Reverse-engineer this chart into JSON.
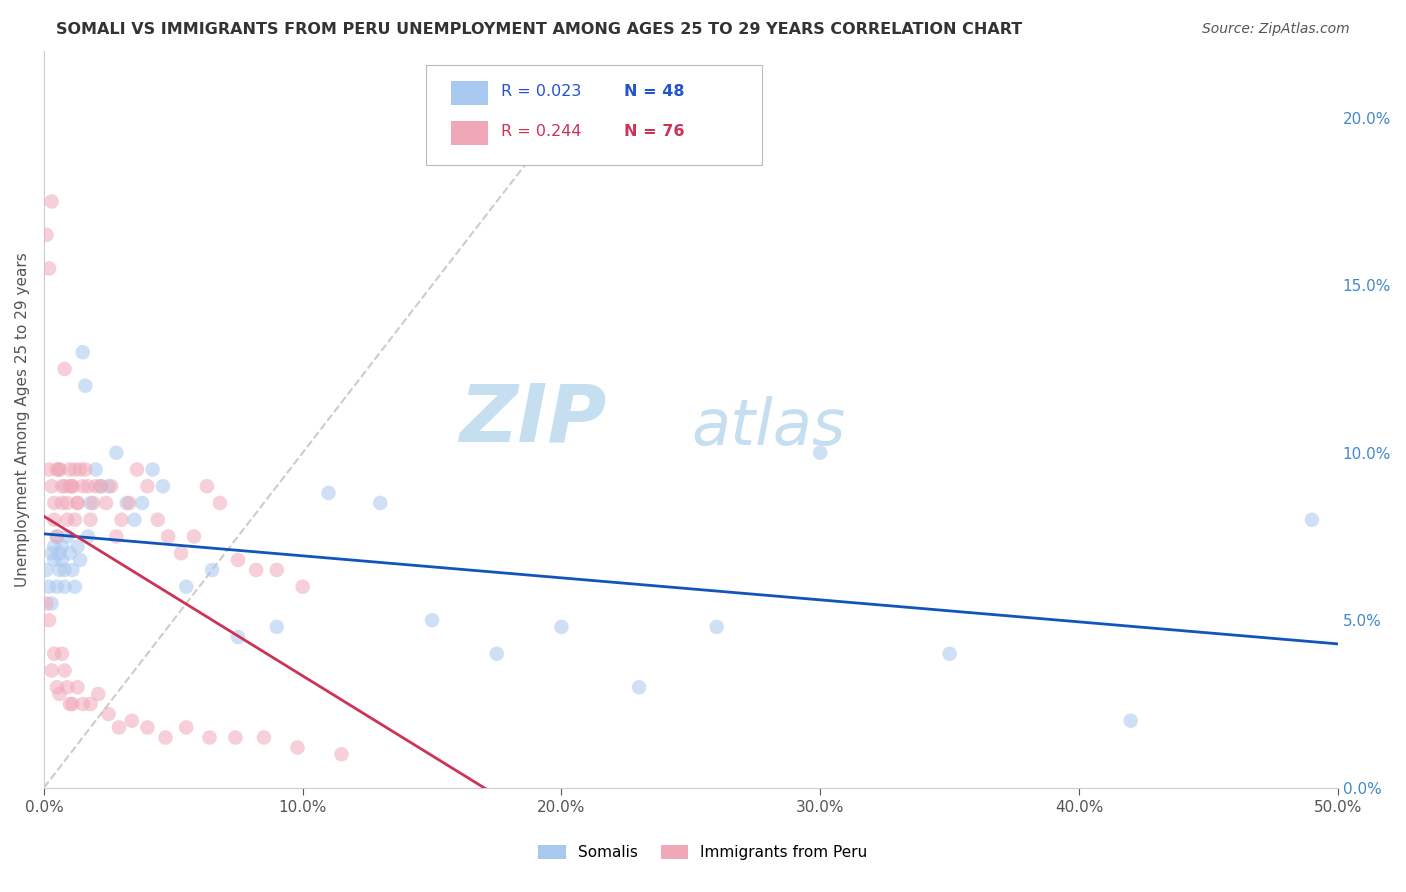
{
  "title": "SOMALI VS IMMIGRANTS FROM PERU UNEMPLOYMENT AMONG AGES 25 TO 29 YEARS CORRELATION CHART",
  "source": "Source: ZipAtlas.com",
  "ylabel": "Unemployment Among Ages 25 to 29 years",
  "xlim": [
    0.0,
    0.5
  ],
  "ylim": [
    0.0,
    0.22
  ],
  "xticks": [
    0.0,
    0.1,
    0.2,
    0.3,
    0.4,
    0.5
  ],
  "xticklabels": [
    "0.0%",
    "10.0%",
    "20.0%",
    "30.0%",
    "40.0%",
    "50.0%"
  ],
  "yticks_right": [
    0.0,
    0.05,
    0.1,
    0.15,
    0.2
  ],
  "ytick_right_labels": [
    "0.0%",
    "5.0%",
    "10.0%",
    "15.0%",
    "20.0%"
  ],
  "somali_R": 0.023,
  "somali_N": 48,
  "peru_R": 0.244,
  "peru_N": 76,
  "somali_color": "#a8c8f0",
  "peru_color": "#f0a8b8",
  "somali_line_color": "#1155bb",
  "peru_line_color": "#cc3355",
  "diagonal_color": "#cccccc",
  "watermark_zip": "ZIP",
  "watermark_atlas": "atlas",
  "watermark_color_zip": "#c5dff0",
  "watermark_color_atlas": "#c5dff0",
  "background_color": "#ffffff",
  "somali_x": [
    0.001,
    0.002,
    0.003,
    0.003,
    0.004,
    0.004,
    0.005,
    0.005,
    0.006,
    0.006,
    0.007,
    0.007,
    0.008,
    0.008,
    0.009,
    0.01,
    0.011,
    0.012,
    0.013,
    0.014,
    0.015,
    0.016,
    0.017,
    0.018,
    0.02,
    0.022,
    0.025,
    0.028,
    0.032,
    0.035,
    0.038,
    0.042,
    0.046,
    0.055,
    0.065,
    0.075,
    0.09,
    0.11,
    0.13,
    0.15,
    0.175,
    0.2,
    0.23,
    0.26,
    0.3,
    0.35,
    0.42,
    0.49
  ],
  "somali_y": [
    0.065,
    0.06,
    0.055,
    0.07,
    0.068,
    0.072,
    0.06,
    0.075,
    0.065,
    0.07,
    0.068,
    0.072,
    0.06,
    0.065,
    0.075,
    0.07,
    0.065,
    0.06,
    0.072,
    0.068,
    0.13,
    0.12,
    0.075,
    0.085,
    0.095,
    0.09,
    0.09,
    0.1,
    0.085,
    0.08,
    0.085,
    0.095,
    0.09,
    0.06,
    0.065,
    0.045,
    0.048,
    0.088,
    0.085,
    0.05,
    0.04,
    0.048,
    0.03,
    0.048,
    0.1,
    0.04,
    0.02,
    0.08
  ],
  "peru_x": [
    0.001,
    0.002,
    0.002,
    0.003,
    0.003,
    0.004,
    0.004,
    0.005,
    0.005,
    0.006,
    0.006,
    0.007,
    0.007,
    0.008,
    0.008,
    0.009,
    0.009,
    0.01,
    0.01,
    0.011,
    0.011,
    0.012,
    0.012,
    0.013,
    0.013,
    0.014,
    0.015,
    0.016,
    0.017,
    0.018,
    0.019,
    0.02,
    0.022,
    0.024,
    0.026,
    0.028,
    0.03,
    0.033,
    0.036,
    0.04,
    0.044,
    0.048,
    0.053,
    0.058,
    0.063,
    0.068,
    0.075,
    0.082,
    0.09,
    0.1,
    0.001,
    0.002,
    0.003,
    0.004,
    0.005,
    0.006,
    0.007,
    0.008,
    0.009,
    0.01,
    0.011,
    0.013,
    0.015,
    0.018,
    0.021,
    0.025,
    0.029,
    0.034,
    0.04,
    0.047,
    0.055,
    0.064,
    0.074,
    0.085,
    0.098,
    0.115
  ],
  "peru_y": [
    0.165,
    0.155,
    0.095,
    0.175,
    0.09,
    0.085,
    0.08,
    0.075,
    0.095,
    0.095,
    0.095,
    0.085,
    0.09,
    0.125,
    0.09,
    0.08,
    0.085,
    0.09,
    0.095,
    0.09,
    0.09,
    0.095,
    0.08,
    0.085,
    0.085,
    0.095,
    0.09,
    0.095,
    0.09,
    0.08,
    0.085,
    0.09,
    0.09,
    0.085,
    0.09,
    0.075,
    0.08,
    0.085,
    0.095,
    0.09,
    0.08,
    0.075,
    0.07,
    0.075,
    0.09,
    0.085,
    0.068,
    0.065,
    0.065,
    0.06,
    0.055,
    0.05,
    0.035,
    0.04,
    0.03,
    0.028,
    0.04,
    0.035,
    0.03,
    0.025,
    0.025,
    0.03,
    0.025,
    0.025,
    0.028,
    0.022,
    0.018,
    0.02,
    0.018,
    0.015,
    0.018,
    0.015,
    0.015,
    0.015,
    0.012,
    0.01
  ]
}
